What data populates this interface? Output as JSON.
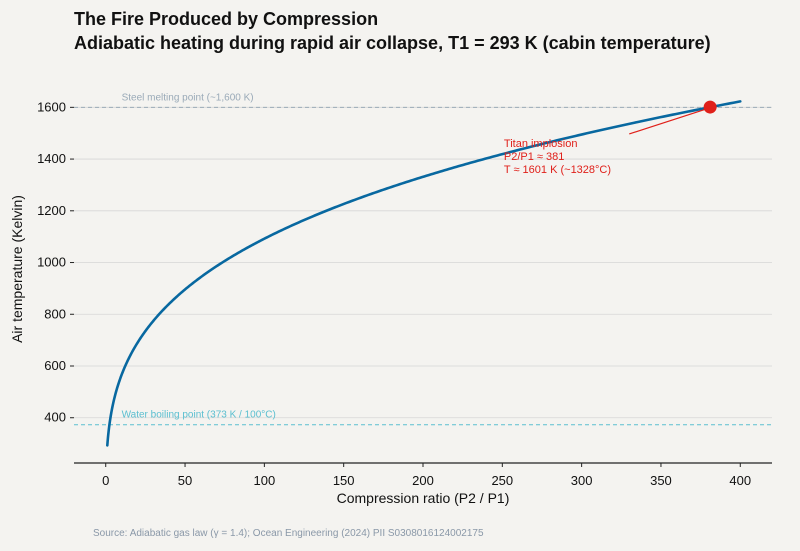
{
  "chart_data": {
    "type": "line",
    "title": "The Fire Produced by Compression",
    "subtitle": "Adiabatic heating during rapid air collapse, T1 = 293 K (cabin temperature)",
    "xlabel": "Compression ratio (P2 / P1)",
    "ylabel": "Air temperature (Kelvin)",
    "xlim": [
      -20,
      420
    ],
    "ylim": [
      225,
      1725
    ],
    "xticks": [
      0,
      50,
      100,
      150,
      200,
      250,
      300,
      350,
      400
    ],
    "yticks": [
      400,
      600,
      800,
      1000,
      1200,
      1400,
      1600
    ],
    "grid": "horizontal",
    "series": [
      {
        "formula": "T = 293 * (P2/P1)^((1.4-1)/1.4)",
        "T1": 293,
        "gamma": 1.4,
        "x_range": [
          1,
          400
        ],
        "color": "#0868a0"
      }
    ],
    "reference_lines": [
      {
        "y": 1600,
        "label": "Steel melting point (~1,600 K)",
        "color": "#9aaab8"
      },
      {
        "y": 373,
        "label": "Water boiling point (373 K / 100°C)",
        "color": "#5bbfd0"
      }
    ],
    "highlight_point": {
      "x": 381,
      "y": 1601,
      "color": "#e0201a",
      "annotation": [
        "Titan implosion",
        "P2/P1 ≈ 381",
        "T ≈ 1601 K (~1328°C)"
      ]
    },
    "source": "Source: Adiabatic gas law (γ = 1.4); Ocean Engineering (2024) PII S0308016124002175"
  },
  "colors": {
    "background": "#f4f3f0",
    "grid": "#d6d6d6",
    "axis": "#222222",
    "text_muted": "#8a98a8"
  }
}
